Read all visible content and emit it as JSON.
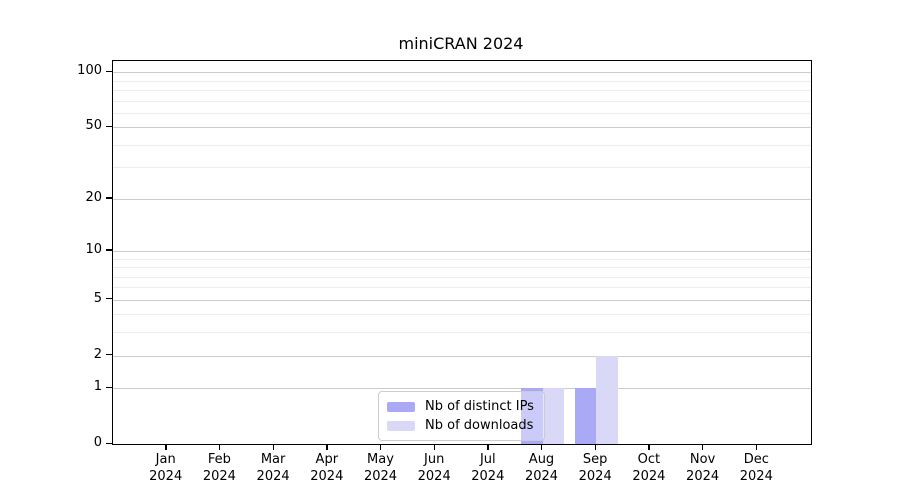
{
  "window": {
    "background": "#ffffff"
  },
  "chart_data": {
    "type": "bar",
    "title": "miniCRAN 2024",
    "categories": [
      "Jan",
      "Feb",
      "Mar",
      "Apr",
      "May",
      "Jun",
      "Jul",
      "Aug",
      "Sep",
      "Oct",
      "Nov",
      "Dec"
    ],
    "x_year_label": "2024",
    "series": [
      {
        "name": "Nb of distinct IPs",
        "color": "#a9a9f5",
        "values": [
          0,
          0,
          0,
          0,
          0,
          0,
          0,
          1,
          1,
          0,
          0,
          0
        ]
      },
      {
        "name": "Nb of downloads",
        "color": "#d9d9f7",
        "values": [
          0,
          0,
          0,
          0,
          0,
          0,
          0,
          1,
          2,
          0,
          0,
          0
        ]
      }
    ],
    "yscale": "log1p",
    "ylim": [
      0,
      115
    ],
    "yticks": [
      0,
      1,
      2,
      5,
      10,
      20,
      50,
      100
    ],
    "yticks_minor": [
      3,
      4,
      6,
      7,
      8,
      9,
      30,
      40,
      60,
      70,
      80,
      90
    ],
    "grid": "horizontal",
    "legend_position": "bottom-center",
    "colors": {
      "grid_major": "#cccccc",
      "grid_minor": "#ececec",
      "axis": "#000000"
    }
  }
}
